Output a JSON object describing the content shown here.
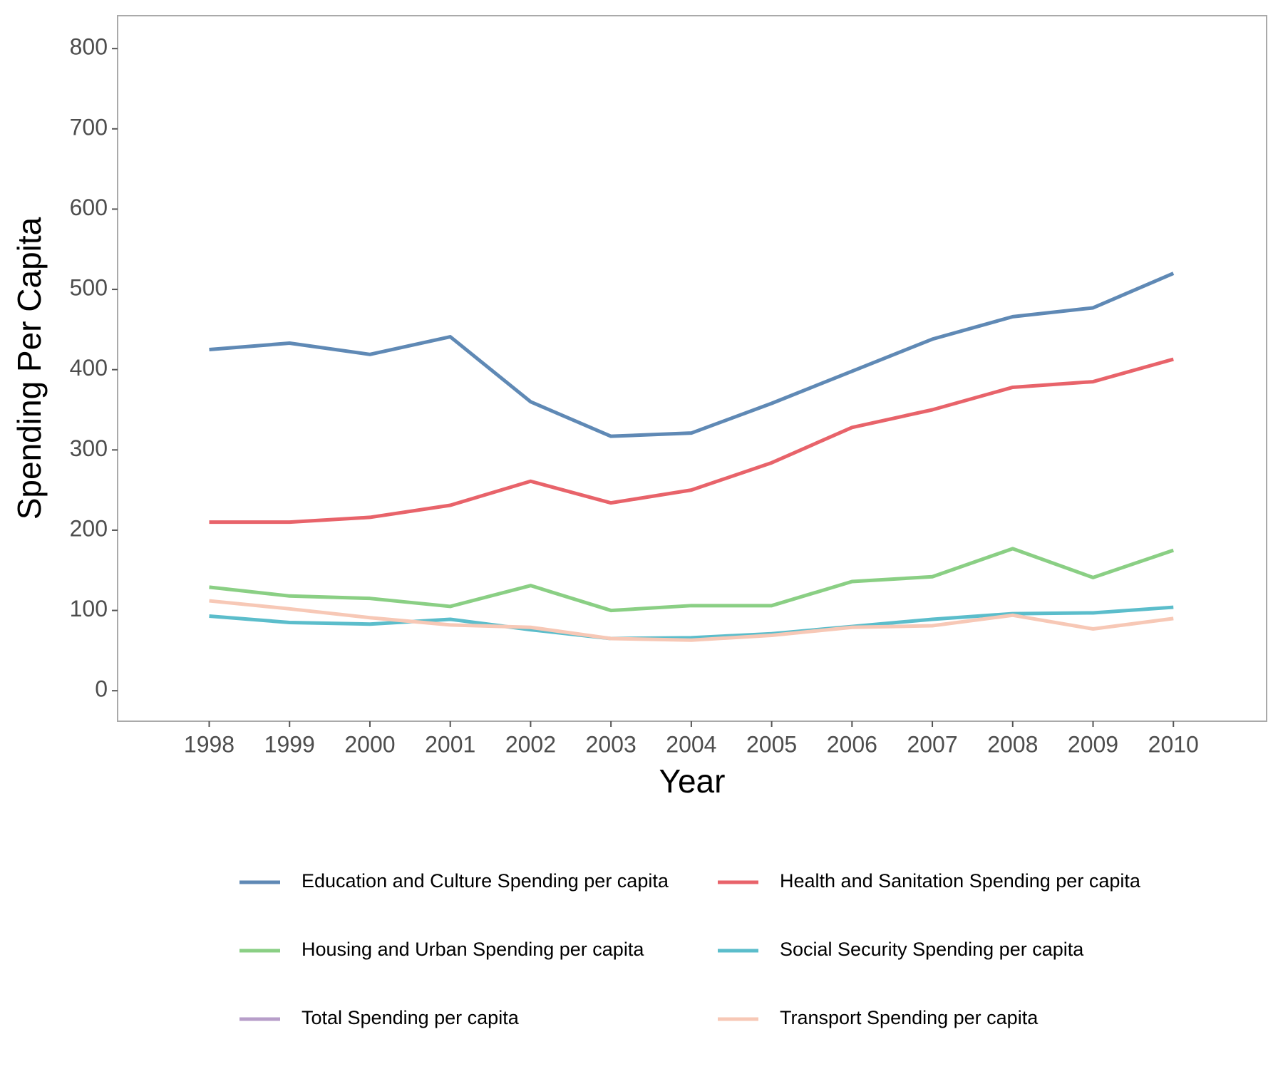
{
  "chart_data": {
    "type": "line",
    "x_label": "Year",
    "y_label": "Spending Per Capita",
    "x": [
      1998,
      1999,
      2000,
      2001,
      2002,
      2003,
      2004,
      2005,
      2006,
      2007,
      2008,
      2009,
      2010
    ],
    "series": [
      {
        "name": "Education and Culture Spending per capita",
        "color": "#5f89b5",
        "values": [
          425,
          433,
          419,
          441,
          360,
          317,
          321,
          358,
          398,
          438,
          466,
          477,
          520
        ]
      },
      {
        "name": "Health and Sanitation Spending per capita",
        "color": "#e8636a",
        "values": [
          210,
          210,
          216,
          231,
          261,
          234,
          250,
          284,
          328,
          350,
          378,
          385,
          413
        ]
      },
      {
        "name": "Housing and Urban Spending per capita",
        "color": "#8acf84",
        "values": [
          129,
          118,
          115,
          105,
          131,
          100,
          106,
          106,
          136,
          142,
          177,
          141,
          175
        ]
      },
      {
        "name": "Social Security Spending per capita",
        "color": "#5bbdcb",
        "values": [
          93,
          85,
          83,
          89,
          76,
          65,
          66,
          71,
          80,
          89,
          96,
          97,
          104
        ]
      },
      {
        "name": "Total Spending per capita",
        "color": "#b79ec9",
        "values": [
          null,
          null,
          null,
          null,
          null,
          null,
          null,
          null,
          null,
          null,
          null,
          null,
          null
        ]
      },
      {
        "name": "Transport Spending per capita",
        "color": "#f7c8b6",
        "values": [
          112,
          102,
          91,
          82,
          79,
          65,
          63,
          69,
          79,
          81,
          94,
          77,
          90
        ]
      }
    ],
    "xlim": [
      1996.86,
      2011.16
    ],
    "xticks": [
      1998,
      1999,
      2000,
      2001,
      2002,
      2003,
      2004,
      2005,
      2006,
      2007,
      2008,
      2009,
      2010
    ],
    "ylim": [
      -38,
      841
    ],
    "yticks": [
      0,
      100,
      200,
      300,
      400,
      500,
      600,
      700,
      800
    ],
    "grid": false,
    "legend_position": "bottom"
  }
}
